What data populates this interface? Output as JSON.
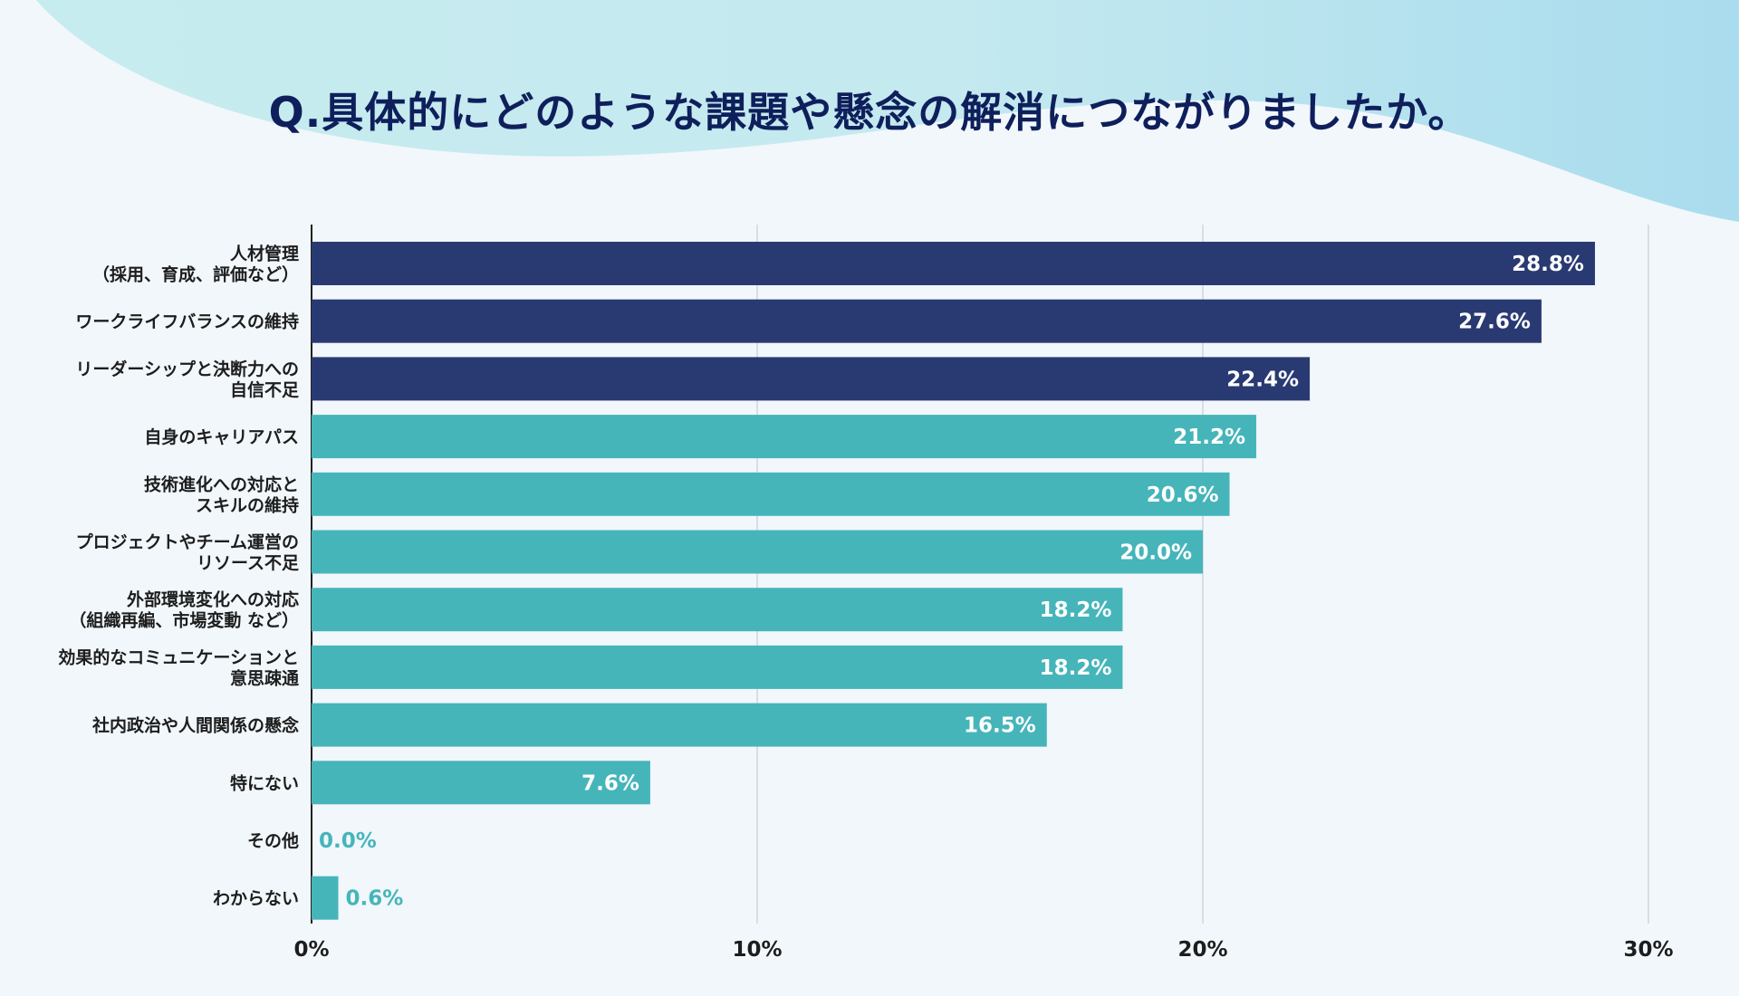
{
  "chart_data": {
    "type": "bar",
    "orientation": "horizontal",
    "title": "Q.具体的にどのような課題や懸念の解消につながりましたか。",
    "categories": [
      [
        "人材管理",
        "（採用、育成、評価など）"
      ],
      [
        "ワークライフバランスの維持"
      ],
      [
        "リーダーシップと決断力への",
        "自信不足"
      ],
      [
        "自身のキャリアパス"
      ],
      [
        "技術進化への対応と",
        "スキルの維持"
      ],
      [
        "プロジェクトやチーム運営の",
        "リソース不足"
      ],
      [
        "外部環境変化への対応",
        "（組織再編、市場変動 など）"
      ],
      [
        "効果的なコミュニケーションと",
        "意思疎通"
      ],
      [
        "社内政治や人間関係の懸念"
      ],
      [
        "特にない"
      ],
      [
        "その他"
      ],
      [
        "わからない"
      ]
    ],
    "values": [
      28.8,
      27.6,
      22.4,
      21.2,
      20.6,
      20.0,
      18.2,
      18.2,
      16.5,
      7.6,
      0.0,
      0.6
    ],
    "value_labels": [
      "28.8%",
      "27.6%",
      "22.4%",
      "21.2%",
      "20.6%",
      "20.0%",
      "18.2%",
      "18.2%",
      "16.5%",
      "7.6%",
      "0.0%",
      "0.6%"
    ],
    "highlight_count": 3,
    "xlim": [
      0,
      30
    ],
    "xticks": [
      0,
      10,
      20,
      30
    ],
    "xtick_labels": [
      "0%",
      "10%",
      "20%",
      "30%"
    ],
    "grid": true,
    "colors": {
      "highlight": "#293a73",
      "normal": "#46b5ba",
      "outside_label": "#46b5ba",
      "inside_label": "#ffffff",
      "title": "#0f1f5c"
    }
  }
}
